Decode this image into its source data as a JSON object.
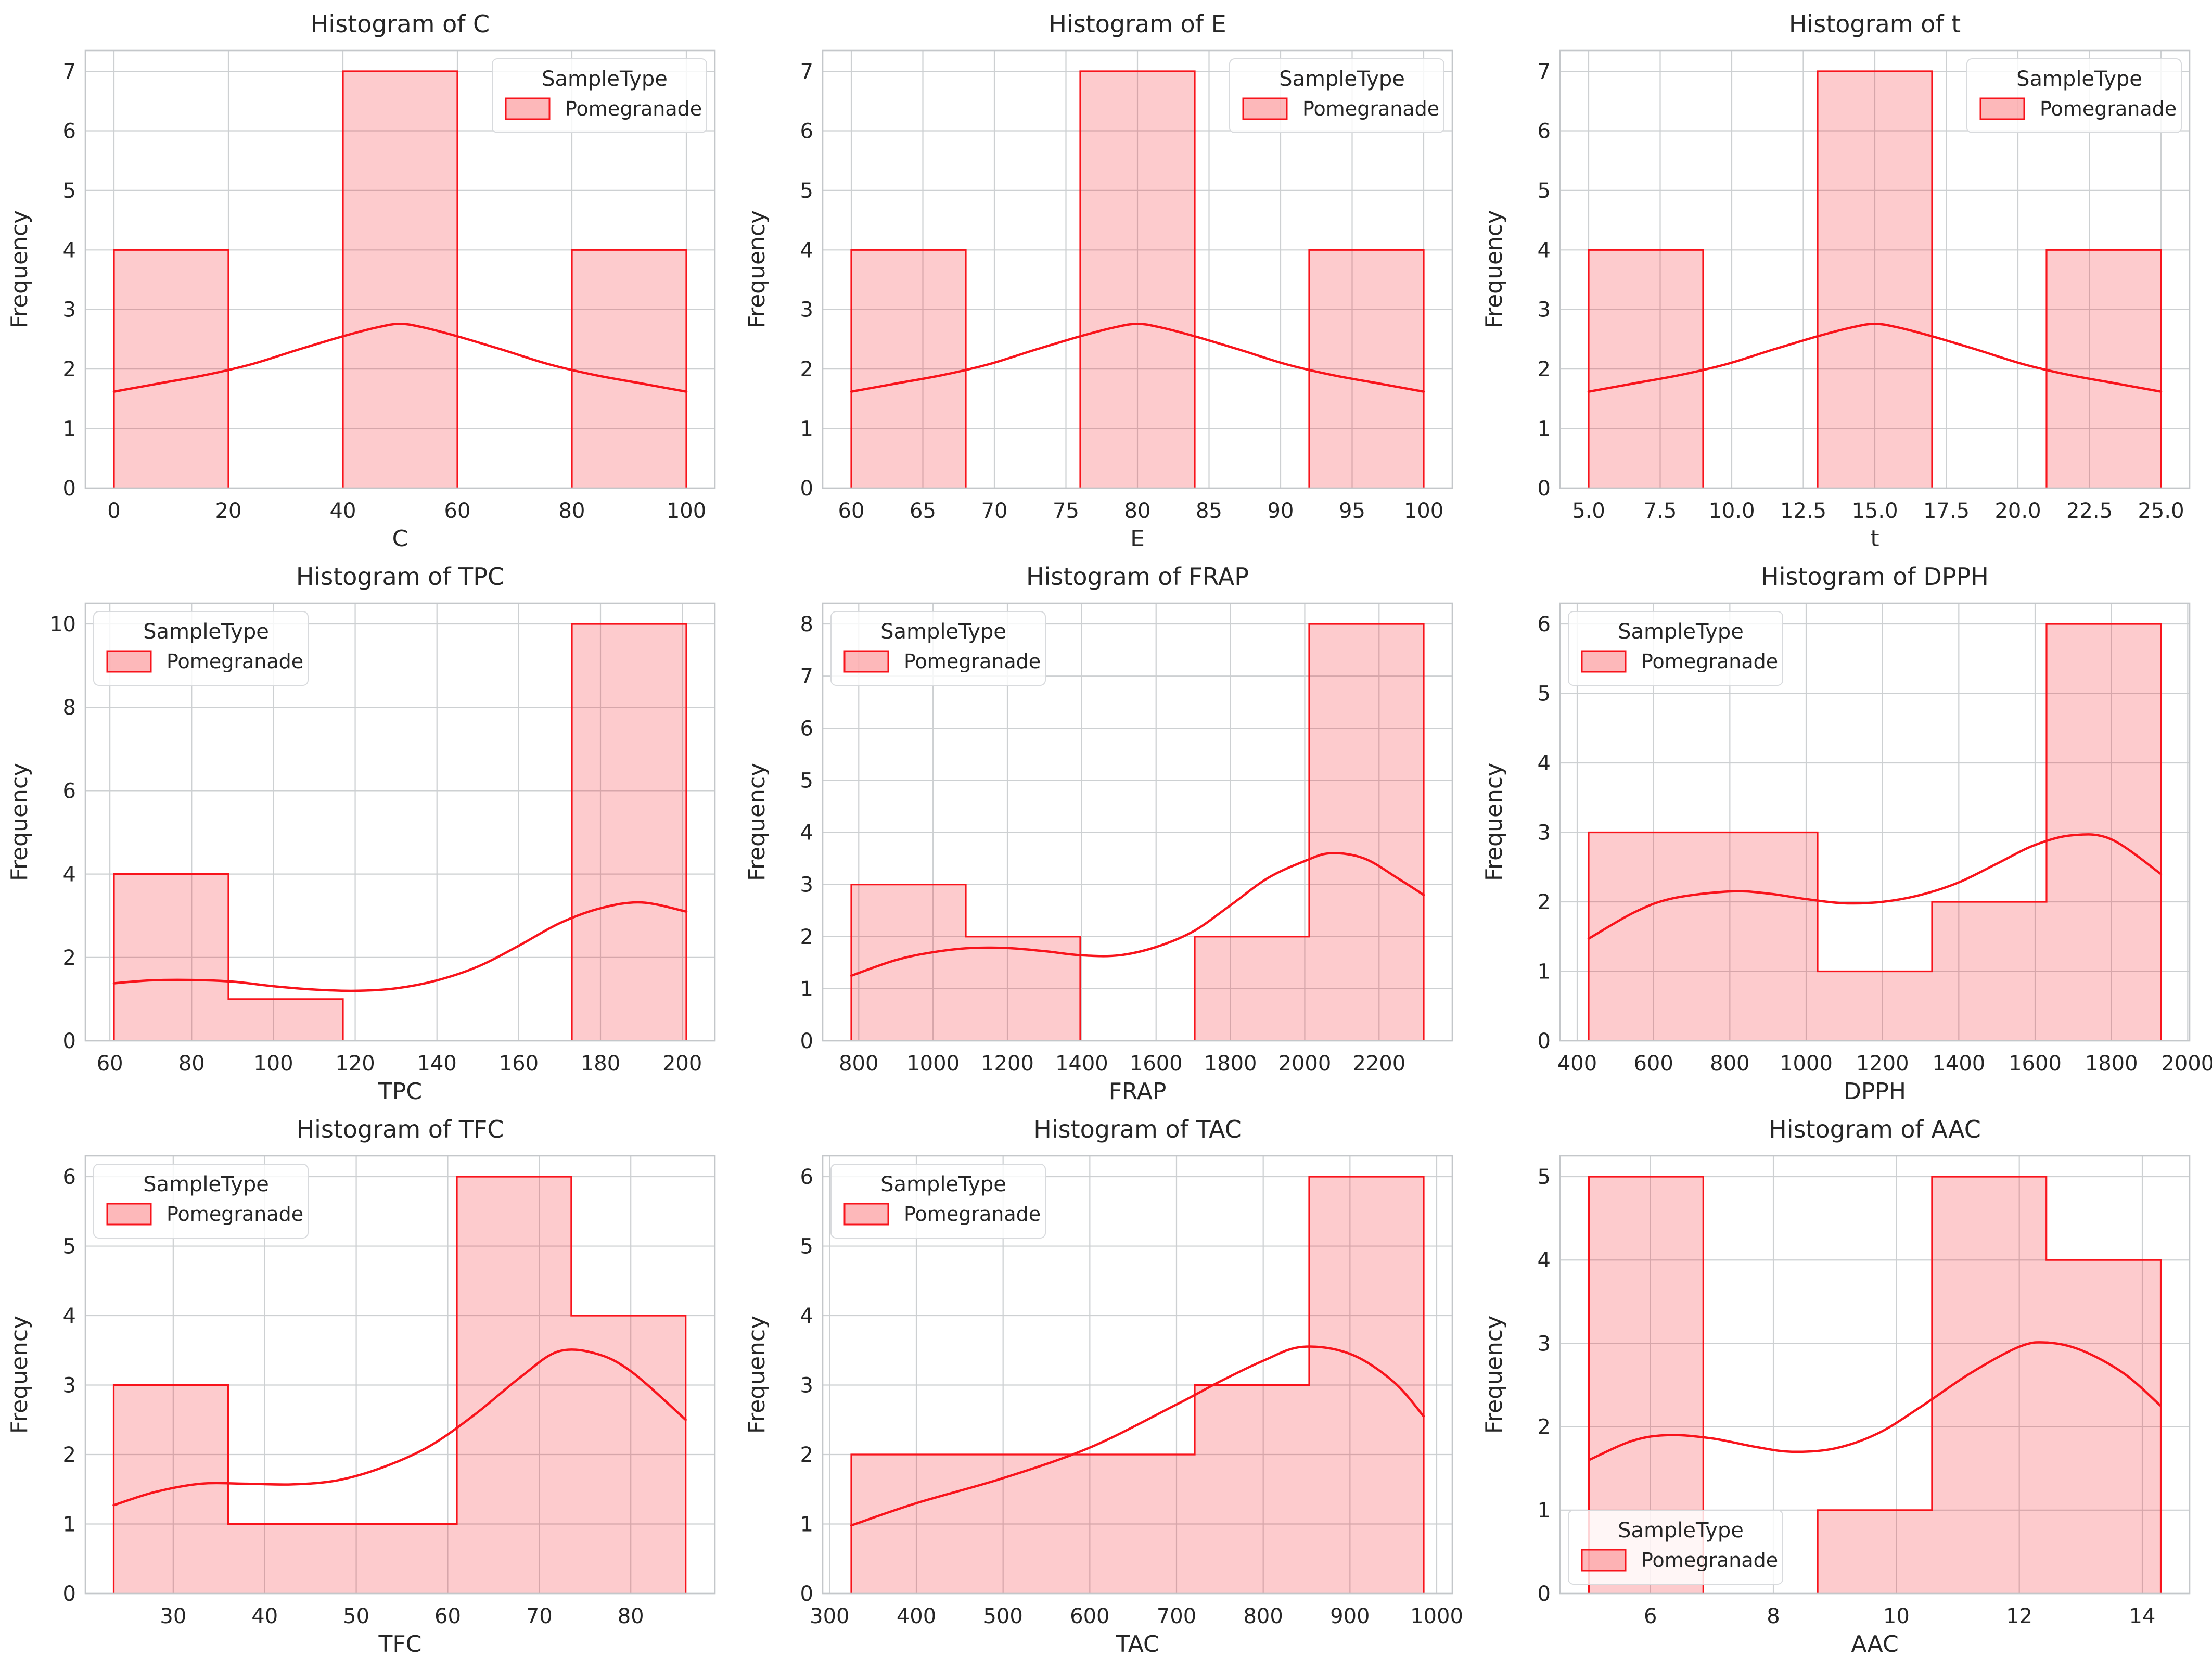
{
  "figure": {
    "background": "#ffffff",
    "line_red": "#f8141c",
    "bar_fill": "rgba(248,20,28,0.22)",
    "legend_swatch_fill": "rgba(248,20,28,0.30)",
    "grid_color": "#cdd0d2",
    "spine_color": "#c4c7ca",
    "text_color": "#262626",
    "legend_border": "#d8dadd",
    "legend_bg": "rgba(255,255,255,0.82)"
  },
  "legend": {
    "title": "SampleType",
    "entry_label": "Pomegranade"
  },
  "chart_data": [
    {
      "type": "bar",
      "subtype": "histogram-with-kde",
      "key": "C",
      "title": "Histogram of C",
      "xlabel": "C",
      "ylabel": "Frequency",
      "xlim": [
        -5,
        105
      ],
      "ylim": [
        0,
        7.35
      ],
      "xticks": [
        0,
        20,
        40,
        60,
        80,
        100
      ],
      "xtick_labels": [
        "0",
        "20",
        "40",
        "60",
        "80",
        "100"
      ],
      "yticks": [
        0,
        1,
        2,
        3,
        4,
        5,
        6,
        7
      ],
      "ytick_labels": [
        "0",
        "1",
        "2",
        "3",
        "4",
        "5",
        "6",
        "7"
      ],
      "bin_edges": [
        0,
        20,
        40,
        60,
        80,
        100
      ],
      "counts": [
        4,
        0,
        7,
        0,
        4
      ],
      "kde": [
        [
          0,
          1.62
        ],
        [
          8,
          1.76
        ],
        [
          16,
          1.9
        ],
        [
          24,
          2.08
        ],
        [
          32,
          2.32
        ],
        [
          40,
          2.55
        ],
        [
          46,
          2.7
        ],
        [
          50,
          2.76
        ],
        [
          54,
          2.7
        ],
        [
          60,
          2.55
        ],
        [
          68,
          2.32
        ],
        [
          76,
          2.08
        ],
        [
          84,
          1.9
        ],
        [
          92,
          1.76
        ],
        [
          100,
          1.62
        ]
      ],
      "legend_pos": "upper-right",
      "grid": true
    },
    {
      "type": "bar",
      "subtype": "histogram-with-kde",
      "key": "E",
      "title": "Histogram of E",
      "xlabel": "E",
      "ylabel": "Frequency",
      "xlim": [
        58,
        102
      ],
      "ylim": [
        0,
        7.35
      ],
      "xticks": [
        60,
        65,
        70,
        75,
        80,
        85,
        90,
        95,
        100
      ],
      "xtick_labels": [
        "60",
        "65",
        "70",
        "75",
        "80",
        "85",
        "90",
        "95",
        "100"
      ],
      "yticks": [
        0,
        1,
        2,
        3,
        4,
        5,
        6,
        7
      ],
      "ytick_labels": [
        "0",
        "1",
        "2",
        "3",
        "4",
        "5",
        "6",
        "7"
      ],
      "bin_edges": [
        60,
        68,
        76,
        84,
        92,
        100
      ],
      "counts": [
        4,
        0,
        7,
        0,
        4
      ],
      "kde": [
        [
          60,
          1.62
        ],
        [
          63.2,
          1.76
        ],
        [
          66.4,
          1.9
        ],
        [
          69.6,
          2.08
        ],
        [
          72.8,
          2.32
        ],
        [
          76,
          2.55
        ],
        [
          78.4,
          2.7
        ],
        [
          80,
          2.76
        ],
        [
          81.6,
          2.7
        ],
        [
          84,
          2.55
        ],
        [
          87.2,
          2.32
        ],
        [
          90.4,
          2.08
        ],
        [
          93.6,
          1.9
        ],
        [
          96.8,
          1.76
        ],
        [
          100,
          1.62
        ]
      ],
      "legend_pos": "upper-right",
      "grid": true
    },
    {
      "type": "bar",
      "subtype": "histogram-with-kde",
      "key": "t",
      "title": "Histogram of t",
      "xlabel": "t",
      "ylabel": "Frequency",
      "xlim": [
        4,
        26
      ],
      "ylim": [
        0,
        7.35
      ],
      "xticks": [
        5,
        7.5,
        10,
        12.5,
        15,
        17.5,
        20,
        22.5,
        25
      ],
      "xtick_labels": [
        "5.0",
        "7.5",
        "10.0",
        "12.5",
        "15.0",
        "17.5",
        "20.0",
        "22.5",
        "25.0"
      ],
      "yticks": [
        0,
        1,
        2,
        3,
        4,
        5,
        6,
        7
      ],
      "ytick_labels": [
        "0",
        "1",
        "2",
        "3",
        "4",
        "5",
        "6",
        "7"
      ],
      "bin_edges": [
        5,
        9,
        13,
        17,
        21,
        25
      ],
      "counts": [
        4,
        0,
        7,
        0,
        4
      ],
      "kde": [
        [
          5,
          1.62
        ],
        [
          6.6,
          1.76
        ],
        [
          8.2,
          1.9
        ],
        [
          9.8,
          2.08
        ],
        [
          11.4,
          2.32
        ],
        [
          13,
          2.55
        ],
        [
          14.2,
          2.7
        ],
        [
          15,
          2.76
        ],
        [
          15.8,
          2.7
        ],
        [
          17,
          2.55
        ],
        [
          18.6,
          2.32
        ],
        [
          20.2,
          2.08
        ],
        [
          21.8,
          1.9
        ],
        [
          23.4,
          1.76
        ],
        [
          25,
          1.62
        ]
      ],
      "legend_pos": "upper-right",
      "grid": true
    },
    {
      "type": "bar",
      "subtype": "histogram-with-kde",
      "key": "TPC",
      "title": "Histogram of TPC",
      "xlabel": "TPC",
      "ylabel": "Frequency",
      "xlim": [
        54,
        208
      ],
      "ylim": [
        0,
        10.5
      ],
      "xticks": [
        60,
        80,
        100,
        120,
        140,
        160,
        180,
        200
      ],
      "xtick_labels": [
        "60",
        "80",
        "100",
        "120",
        "140",
        "160",
        "180",
        "200"
      ],
      "yticks": [
        0,
        2,
        4,
        6,
        8,
        10
      ],
      "ytick_labels": [
        "0",
        "2",
        "4",
        "6",
        "8",
        "10"
      ],
      "bin_edges": [
        61,
        89,
        117,
        145,
        173,
        201
      ],
      "counts": [
        4,
        1,
        0,
        0,
        10
      ],
      "kde": [
        [
          61,
          1.38
        ],
        [
          70,
          1.45
        ],
        [
          80,
          1.46
        ],
        [
          90,
          1.42
        ],
        [
          100,
          1.31
        ],
        [
          110,
          1.23
        ],
        [
          120,
          1.2
        ],
        [
          130,
          1.26
        ],
        [
          140,
          1.45
        ],
        [
          150,
          1.78
        ],
        [
          160,
          2.28
        ],
        [
          170,
          2.82
        ],
        [
          180,
          3.18
        ],
        [
          190,
          3.32
        ],
        [
          201,
          3.1
        ]
      ],
      "legend_pos": "upper-left",
      "grid": true
    },
    {
      "type": "bar",
      "subtype": "histogram-with-kde",
      "key": "FRAP",
      "title": "Histogram of FRAP",
      "xlabel": "FRAP",
      "ylabel": "Frequency",
      "xlim": [
        703,
        2397
      ],
      "ylim": [
        0,
        8.4
      ],
      "xticks": [
        800,
        1000,
        1200,
        1400,
        1600,
        1800,
        2000,
        2200
      ],
      "xtick_labels": [
        "800",
        "1000",
        "1200",
        "1400",
        "1600",
        "1800",
        "2000",
        "2200"
      ],
      "yticks": [
        0,
        1,
        2,
        3,
        4,
        5,
        6,
        7,
        8
      ],
      "ytick_labels": [
        "0",
        "1",
        "2",
        "3",
        "4",
        "5",
        "6",
        "7",
        "8"
      ],
      "bin_edges": [
        780,
        1088,
        1396,
        1704,
        2012,
        2320
      ],
      "counts": [
        3,
        2,
        0,
        2,
        8
      ],
      "kde": [
        [
          780,
          1.25
        ],
        [
          900,
          1.55
        ],
        [
          1000,
          1.7
        ],
        [
          1100,
          1.78
        ],
        [
          1200,
          1.78
        ],
        [
          1300,
          1.72
        ],
        [
          1400,
          1.64
        ],
        [
          1500,
          1.64
        ],
        [
          1600,
          1.8
        ],
        [
          1700,
          2.1
        ],
        [
          1800,
          2.6
        ],
        [
          1900,
          3.12
        ],
        [
          2000,
          3.45
        ],
        [
          2070,
          3.6
        ],
        [
          2160,
          3.5
        ],
        [
          2250,
          3.12
        ],
        [
          2320,
          2.8
        ]
      ],
      "legend_pos": "upper-left",
      "grid": true
    },
    {
      "type": "bar",
      "subtype": "histogram-with-kde",
      "key": "DPPH",
      "title": "Histogram of DPPH",
      "xlabel": "DPPH",
      "ylabel": "Frequency",
      "xlim": [
        355,
        2005
      ],
      "ylim": [
        0,
        6.3
      ],
      "xticks": [
        400,
        600,
        800,
        1000,
        1200,
        1400,
        1600,
        1800,
        2000
      ],
      "xtick_labels": [
        "400",
        "600",
        "800",
        "1000",
        "1200",
        "1400",
        "1600",
        "1800",
        "2000"
      ],
      "yticks": [
        0,
        1,
        2,
        3,
        4,
        5,
        6
      ],
      "ytick_labels": [
        "0",
        "1",
        "2",
        "3",
        "4",
        "5",
        "6"
      ],
      "bin_edges": [
        430,
        730,
        1030,
        1330,
        1630,
        1930
      ],
      "counts": [
        3,
        3,
        1,
        2,
        6
      ],
      "kde": [
        [
          430,
          1.47
        ],
        [
          550,
          1.85
        ],
        [
          650,
          2.05
        ],
        [
          800,
          2.15
        ],
        [
          900,
          2.12
        ],
        [
          1000,
          2.04
        ],
        [
          1100,
          1.98
        ],
        [
          1200,
          2.0
        ],
        [
          1300,
          2.1
        ],
        [
          1400,
          2.28
        ],
        [
          1500,
          2.55
        ],
        [
          1600,
          2.82
        ],
        [
          1700,
          2.96
        ],
        [
          1800,
          2.9
        ],
        [
          1930,
          2.4
        ]
      ],
      "legend_pos": "upper-left",
      "grid": true
    },
    {
      "type": "bar",
      "subtype": "histogram-with-kde",
      "key": "TFC",
      "title": "Histogram of TFC",
      "xlabel": "TFC",
      "ylabel": "Frequency",
      "xlim": [
        20.4,
        89.2
      ],
      "ylim": [
        0,
        6.3
      ],
      "xticks": [
        30,
        40,
        50,
        60,
        70,
        80
      ],
      "xtick_labels": [
        "30",
        "40",
        "50",
        "60",
        "70",
        "80"
      ],
      "yticks": [
        0,
        1,
        2,
        3,
        4,
        5,
        6
      ],
      "ytick_labels": [
        "0",
        "1",
        "2",
        "3",
        "4",
        "5",
        "6"
      ],
      "bin_edges": [
        23.5,
        36,
        48.5,
        61,
        73.5,
        86
      ],
      "counts": [
        3,
        1,
        1,
        6,
        4
      ],
      "kde": [
        [
          23.5,
          1.27
        ],
        [
          28,
          1.46
        ],
        [
          33,
          1.58
        ],
        [
          38,
          1.58
        ],
        [
          43,
          1.57
        ],
        [
          48,
          1.63
        ],
        [
          53,
          1.82
        ],
        [
          58,
          2.12
        ],
        [
          63,
          2.58
        ],
        [
          68,
          3.12
        ],
        [
          72,
          3.48
        ],
        [
          76,
          3.46
        ],
        [
          80,
          3.2
        ],
        [
          86,
          2.5
        ]
      ],
      "legend_pos": "upper-left",
      "grid": true
    },
    {
      "type": "bar",
      "subtype": "histogram-with-kde",
      "key": "TAC",
      "title": "Histogram of TAC",
      "xlabel": "TAC",
      "ylabel": "Frequency",
      "xlim": [
        292,
        1018
      ],
      "ylim": [
        0,
        6.3
      ],
      "xticks": [
        300,
        400,
        500,
        600,
        700,
        800,
        900,
        1000
      ],
      "xtick_labels": [
        "300",
        "400",
        "500",
        "600",
        "700",
        "800",
        "900",
        "1000"
      ],
      "yticks": [
        0,
        1,
        2,
        3,
        4,
        5,
        6
      ],
      "ytick_labels": [
        "0",
        "1",
        "2",
        "3",
        "4",
        "5",
        "6"
      ],
      "bin_edges": [
        325,
        457,
        589,
        721,
        853,
        985
      ],
      "counts": [
        2,
        2,
        2,
        3,
        6
      ],
      "kde": [
        [
          325,
          0.98
        ],
        [
          400,
          1.3
        ],
        [
          500,
          1.66
        ],
        [
          600,
          2.1
        ],
        [
          700,
          2.72
        ],
        [
          750,
          3.05
        ],
        [
          800,
          3.35
        ],
        [
          845,
          3.55
        ],
        [
          900,
          3.45
        ],
        [
          950,
          3.05
        ],
        [
          985,
          2.55
        ]
      ],
      "legend_pos": "upper-left",
      "grid": true
    },
    {
      "type": "bar",
      "subtype": "histogram-with-kde",
      "key": "AAC",
      "title": "Histogram of AAC",
      "xlabel": "AAC",
      "ylabel": "Frequency",
      "xlim": [
        4.53,
        14.77
      ],
      "ylim": [
        0,
        5.25
      ],
      "xticks": [
        6,
        8,
        10,
        12,
        14
      ],
      "xtick_labels": [
        "6",
        "8",
        "10",
        "12",
        "14"
      ],
      "yticks": [
        0,
        1,
        2,
        3,
        4,
        5
      ],
      "ytick_labels": [
        "0",
        "1",
        "2",
        "3",
        "4",
        "5"
      ],
      "bin_edges": [
        5.0,
        6.86,
        8.72,
        10.58,
        12.44,
        14.3
      ],
      "counts": [
        5,
        0,
        1,
        5,
        4
      ],
      "kde": [
        [
          5.0,
          1.6
        ],
        [
          5.7,
          1.83
        ],
        [
          6.3,
          1.9
        ],
        [
          7.0,
          1.86
        ],
        [
          7.7,
          1.76
        ],
        [
          8.3,
          1.7
        ],
        [
          9.0,
          1.74
        ],
        [
          9.7,
          1.92
        ],
        [
          10.4,
          2.24
        ],
        [
          11.2,
          2.64
        ],
        [
          12.0,
          2.96
        ],
        [
          12.45,
          3.01
        ],
        [
          13.0,
          2.92
        ],
        [
          13.7,
          2.64
        ],
        [
          14.3,
          2.25
        ]
      ],
      "legend_pos": "lower-left",
      "grid": true
    }
  ]
}
